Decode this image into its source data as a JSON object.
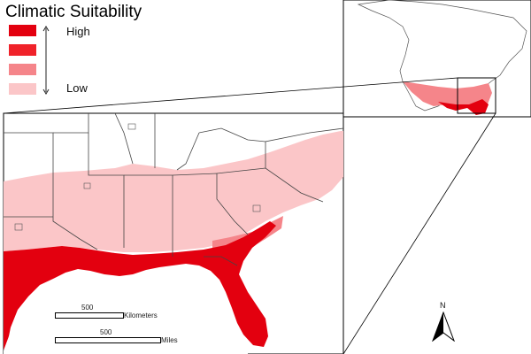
{
  "legend": {
    "title": "Climatic Suitability",
    "high_label": "High",
    "low_label": "Low",
    "classes": [
      {
        "level": "highest",
        "color": "#e3000f"
      },
      {
        "level": "high",
        "color": "#f0222a"
      },
      {
        "level": "medium",
        "color": "#f5858a"
      },
      {
        "level": "low",
        "color": "#fbc6c8"
      }
    ]
  },
  "scalebars": {
    "km": {
      "value": "500",
      "unit": "Kilometers"
    },
    "miles": {
      "value": "500",
      "unit": "Miles"
    }
  },
  "north_arrow": {
    "label": "N"
  },
  "colors": {
    "boundary": "#444444",
    "water": "#ffffff",
    "land": "#ffffff",
    "frame": "#000000"
  },
  "icons": [
    "north-arrow-icon"
  ]
}
